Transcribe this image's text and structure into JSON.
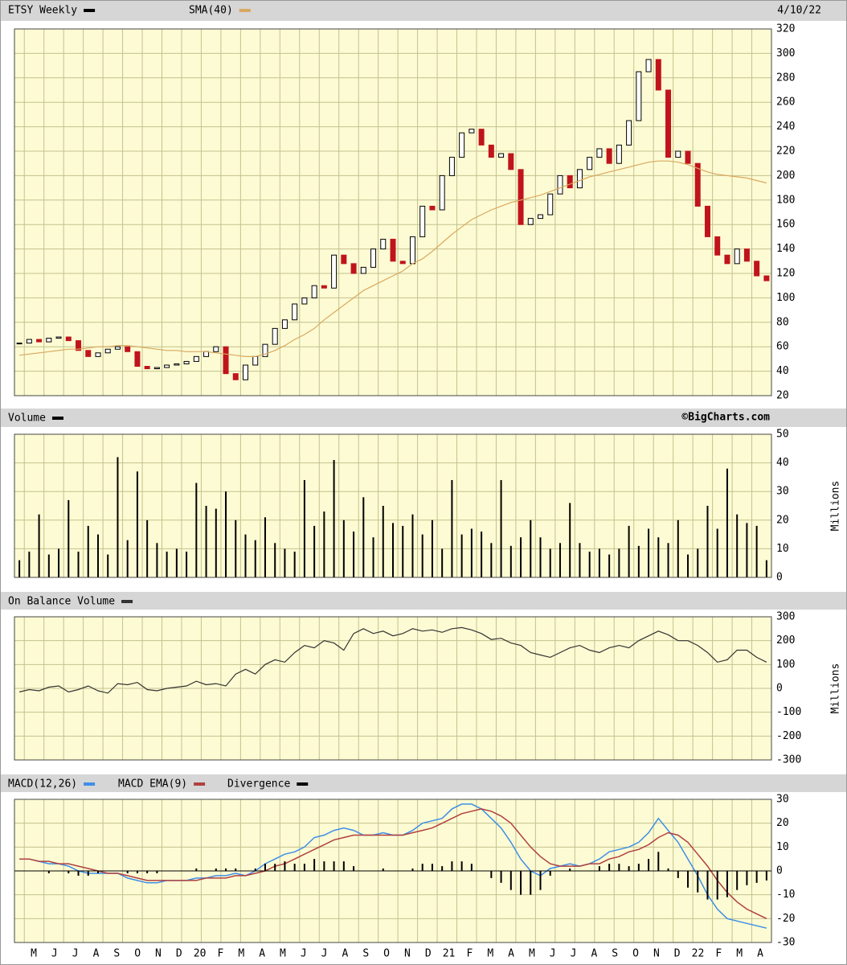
{
  "date": "4/10/22",
  "credit": "©BigCharts.com",
  "x_labels": [
    "M",
    "J",
    "J",
    "A",
    "S",
    "O",
    "N",
    "D",
    "20",
    "F",
    "M",
    "A",
    "M",
    "J",
    "J",
    "A",
    "S",
    "O",
    "N",
    "D",
    "21",
    "F",
    "M",
    "A",
    "M",
    "J",
    "J",
    "A",
    "S",
    "O",
    "N",
    "D",
    "22",
    "F",
    "M",
    "A"
  ],
  "chart_data": [
    {
      "type": "candlestick",
      "grid": true,
      "series": [
        {
          "name": "ETSY Weekly",
          "color": "#000000",
          "down_color": "#c0141c",
          "values": [
            63,
            66,
            64,
            67,
            68,
            65,
            57,
            52,
            55,
            58,
            60,
            56,
            44,
            42,
            43,
            45,
            46,
            48,
            52,
            56,
            60,
            38,
            33,
            45,
            52,
            62,
            75,
            82,
            95,
            100,
            110,
            108,
            135,
            128,
            120,
            125,
            140,
            148,
            130,
            128,
            150,
            175,
            172,
            200,
            215,
            235,
            238,
            225,
            215,
            218,
            205,
            160,
            165,
            168,
            185,
            200,
            190,
            205,
            215,
            222,
            210,
            225,
            245,
            285,
            295,
            270,
            215,
            220,
            210,
            175,
            150,
            135,
            128,
            140,
            130,
            118,
            114
          ]
        },
        {
          "name": "SMA(40)",
          "type": "line",
          "color": "#d9a860",
          "values": [
            53,
            54,
            55,
            56,
            57,
            58,
            58,
            59,
            60,
            60,
            61,
            61,
            60,
            59,
            58,
            57,
            57,
            56,
            56,
            56,
            55,
            54,
            53,
            52,
            52,
            54,
            57,
            61,
            66,
            70,
            75,
            82,
            88,
            94,
            100,
            106,
            110,
            114,
            118,
            122,
            128,
            132,
            138,
            145,
            152,
            158,
            164,
            168,
            172,
            175,
            178,
            180,
            182,
            184,
            187,
            190,
            193,
            196,
            199,
            201,
            203,
            205,
            207,
            209,
            211,
            212,
            212,
            211,
            209,
            206,
            203,
            201,
            200,
            199,
            198,
            196,
            194
          ]
        }
      ],
      "ylim": [
        20,
        320
      ],
      "yticks": [
        20,
        40,
        60,
        80,
        100,
        120,
        140,
        160,
        180,
        200,
        220,
        240,
        260,
        280,
        300,
        320
      ]
    },
    {
      "type": "bar",
      "grid": true,
      "y_label": "Millions",
      "series": [
        {
          "name": "Volume",
          "color": "#000000",
          "values": [
            6,
            9,
            22,
            8,
            10,
            27,
            9,
            18,
            15,
            8,
            42,
            13,
            37,
            20,
            12,
            9,
            10,
            9,
            33,
            25,
            24,
            30,
            20,
            15,
            13,
            21,
            12,
            10,
            9,
            34,
            18,
            23,
            41,
            20,
            16,
            28,
            14,
            25,
            19,
            18,
            22,
            15,
            20,
            10,
            34,
            15,
            17,
            16,
            12,
            34,
            11,
            14,
            20,
            14,
            10,
            12,
            26,
            12,
            9,
            10,
            8,
            10,
            18,
            11,
            17,
            14,
            12,
            20,
            8,
            10,
            25,
            17,
            38,
            22,
            19,
            18,
            6
          ]
        }
      ],
      "ylim": [
        0,
        50
      ],
      "yticks": [
        0,
        10,
        20,
        30,
        40,
        50
      ]
    },
    {
      "type": "line",
      "grid": true,
      "y_label": "Millions",
      "series": [
        {
          "name": "On Balance Volume",
          "color": "#333333",
          "values": [
            -15,
            -5,
            -10,
            5,
            10,
            -15,
            -5,
            10,
            -10,
            -20,
            20,
            15,
            25,
            -5,
            -10,
            0,
            5,
            10,
            30,
            15,
            20,
            10,
            60,
            80,
            60,
            100,
            120,
            110,
            150,
            180,
            170,
            200,
            190,
            160,
            230,
            250,
            230,
            240,
            220,
            230,
            250,
            240,
            245,
            235,
            250,
            255,
            245,
            230,
            205,
            210,
            190,
            180,
            150,
            140,
            130,
            150,
            170,
            180,
            160,
            150,
            170,
            180,
            170,
            200,
            220,
            240,
            225,
            200,
            200,
            180,
            150,
            110,
            120,
            160,
            160,
            130,
            110
          ]
        }
      ],
      "ylim": [
        -300,
        300
      ],
      "yticks": [
        -300,
        -200,
        -100,
        0,
        100,
        200,
        300
      ]
    },
    {
      "type": "line",
      "grid": true,
      "series": [
        {
          "name": "MACD(12,26)",
          "color": "#3d8ee8",
          "values": [
            5,
            5,
            4,
            3,
            3,
            2,
            0,
            -1,
            -1,
            -1,
            -1,
            -3,
            -4,
            -5,
            -5,
            -4,
            -4,
            -4,
            -3,
            -3,
            -2,
            -2,
            -1,
            -2,
            0,
            3,
            5,
            7,
            8,
            10,
            14,
            15,
            17,
            18,
            17,
            15,
            15,
            16,
            15,
            15,
            17,
            20,
            21,
            22,
            26,
            28,
            28,
            26,
            22,
            18,
            12,
            5,
            0,
            -2,
            1,
            2,
            3,
            2,
            3,
            5,
            8,
            9,
            10,
            12,
            16,
            22,
            17,
            12,
            5,
            -2,
            -10,
            -16,
            -20,
            -21,
            -22,
            -23,
            -24
          ]
        },
        {
          "name": "MACD EMA(9)",
          "color": "#b04040",
          "values": [
            5,
            5,
            4,
            4,
            3,
            3,
            2,
            1,
            0,
            -1,
            -1,
            -2,
            -3,
            -4,
            -4,
            -4,
            -4,
            -4,
            -4,
            -3,
            -3,
            -3,
            -2,
            -2,
            -1,
            0,
            2,
            3,
            5,
            7,
            9,
            11,
            13,
            14,
            15,
            15,
            15,
            15,
            15,
            15,
            16,
            17,
            18,
            20,
            22,
            24,
            25,
            26,
            25,
            23,
            20,
            15,
            10,
            6,
            3,
            2,
            2,
            2,
            3,
            3,
            5,
            6,
            8,
            9,
            11,
            14,
            16,
            15,
            12,
            7,
            2,
            -4,
            -9,
            -13,
            -16,
            -18,
            -20
          ]
        },
        {
          "name": "Divergence",
          "type": "bar",
          "color": "#000000",
          "values": [
            0,
            0,
            0,
            -1,
            0,
            -1,
            -2,
            -2,
            -1,
            0,
            0,
            -1,
            -1,
            -1,
            -1,
            0,
            0,
            0,
            1,
            0,
            1,
            1,
            1,
            0,
            1,
            3,
            3,
            4,
            3,
            3,
            5,
            4,
            4,
            4,
            2,
            0,
            0,
            1,
            0,
            0,
            1,
            3,
            3,
            2,
            4,
            4,
            3,
            0,
            -3,
            -5,
            -8,
            -10,
            -10,
            -8,
            -2,
            0,
            1,
            0,
            0,
            2,
            3,
            3,
            2,
            3,
            5,
            8,
            1,
            -3,
            -7,
            -9,
            -12,
            -12,
            -11,
            -8,
            -6,
            -5,
            -4
          ]
        }
      ],
      "ylim": [
        -30,
        30
      ],
      "yticks": [
        -30,
        -20,
        -10,
        0,
        10,
        20,
        30
      ]
    }
  ]
}
